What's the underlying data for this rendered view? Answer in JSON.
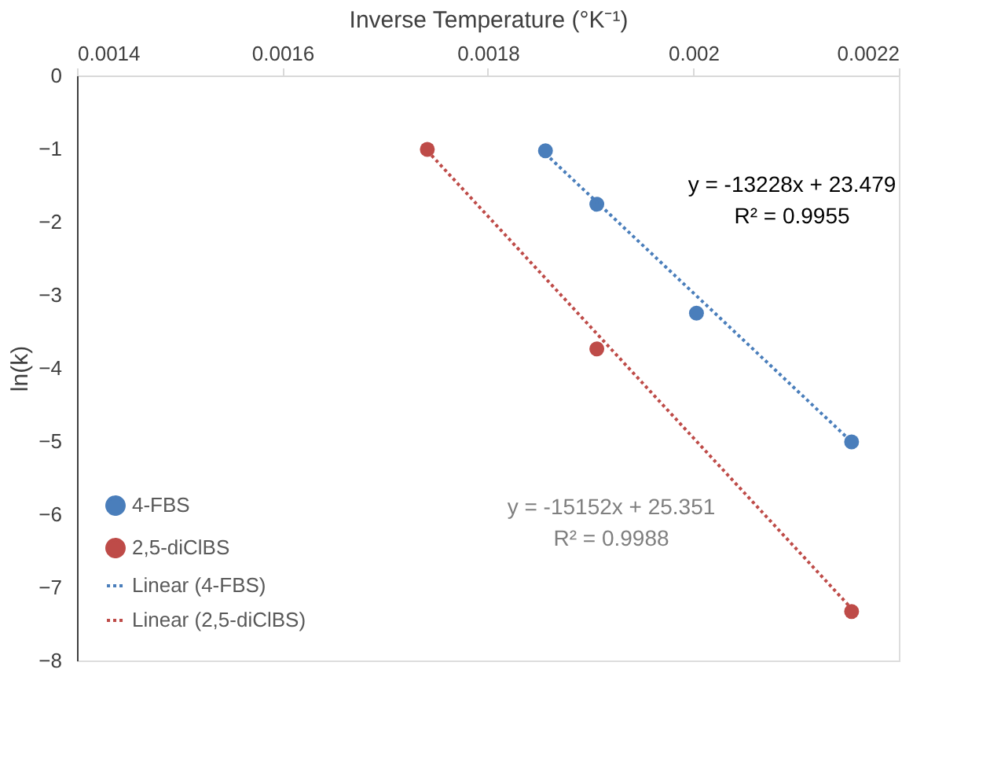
{
  "chart_data": {
    "type": "scatter",
    "xlabel": "Inverse Temperature (°K⁻¹)",
    "ylabel": "ln(k)",
    "xlim": [
      0.0014,
      0.0022
    ],
    "xticks": [
      0.0014,
      0.0016,
      0.0018,
      0.002,
      0.0022
    ],
    "ylim": [
      -8,
      0
    ],
    "yticks": [
      0,
      -1,
      -2,
      -3,
      -4,
      -5,
      -6,
      -7,
      -8
    ],
    "grid": false,
    "legend": "bottom left",
    "series": [
      {
        "name": "4-FBS",
        "marker": "circle",
        "color": "#4a7ebb",
        "x": [
          0.001856,
          0.001906,
          0.002003,
          0.002154
        ],
        "values": [
          -1.03,
          -1.76,
          -3.25,
          -5.01
        ]
      },
      {
        "name": "2,5-diClBS",
        "marker": "circle",
        "color": "#be4b48",
        "x": [
          0.001741,
          0.001906,
          0.002154
        ],
        "values": [
          -1.01,
          -3.74,
          -7.33
        ]
      },
      {
        "name": "Linear (4-FBS)",
        "type": "line",
        "marker": "none",
        "line_style": "dotted",
        "color": "#4a7ebb",
        "x": [
          0.001856,
          0.002154
        ],
        "values": [
          -1.07,
          -5.01
        ]
      },
      {
        "name": "Linear (2,5-diClBS)",
        "type": "line",
        "marker": "none",
        "line_style": "dotted",
        "color": "#be4b48",
        "x": [
          0.001741,
          0.002154
        ],
        "values": [
          -1.03,
          -7.29
        ]
      }
    ],
    "annotations": [
      "y = -13228x + 23.479",
      "R² = 0.9955",
      "y = -15152x + 25.351",
      "R² = 0.9988"
    ]
  }
}
